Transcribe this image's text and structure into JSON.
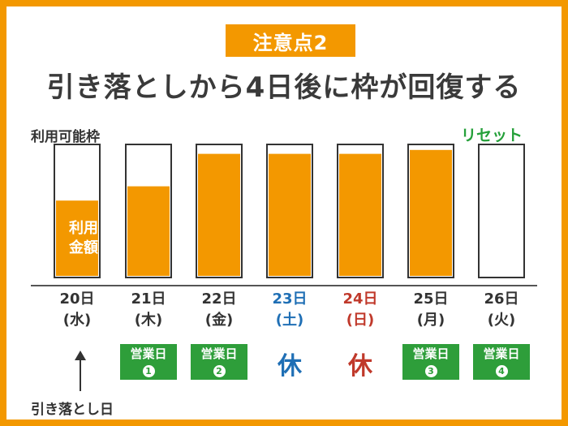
{
  "badge": "注意点2",
  "title": "引き落としから4日後に枠が回復する",
  "ylabel": "利用可能枠",
  "reset_label": "リセット",
  "usage_label_line1": "利用",
  "usage_label_line2": "金額",
  "withdrawal_label": "引き落とし日",
  "holiday_label": "休",
  "business_day_label": "営業日",
  "colors": {
    "accent": "#f39800",
    "green": "#2e9e3a",
    "saturday": "#1f6fb5",
    "sunday": "#c0392b"
  },
  "chart_data": {
    "type": "bar",
    "categories": [
      "20日(水)",
      "21日(木)",
      "22日(金)",
      "23日(土)",
      "24日(日)",
      "25日(月)",
      "26日(火)"
    ],
    "values": [
      0.58,
      0.69,
      0.94,
      0.94,
      0.94,
      0.97,
      0.0
    ],
    "ylim": [
      0,
      1
    ]
  },
  "days": [
    {
      "date": "20日",
      "weekday": "(水)",
      "type": "withdrawal",
      "badge": "",
      "num": ""
    },
    {
      "date": "21日",
      "weekday": "(木)",
      "type": "business",
      "badge": "営業日",
      "num": "1"
    },
    {
      "date": "22日",
      "weekday": "(金)",
      "type": "business",
      "badge": "営業日",
      "num": "2"
    },
    {
      "date": "23日",
      "weekday": "(土)",
      "type": "saturday",
      "badge": "休",
      "num": ""
    },
    {
      "date": "24日",
      "weekday": "(日)",
      "type": "sunday",
      "badge": "休",
      "num": ""
    },
    {
      "date": "25日",
      "weekday": "(月)",
      "type": "business",
      "badge": "営業日",
      "num": "3"
    },
    {
      "date": "26日",
      "weekday": "(火)",
      "type": "business",
      "badge": "営業日",
      "num": "4"
    }
  ]
}
